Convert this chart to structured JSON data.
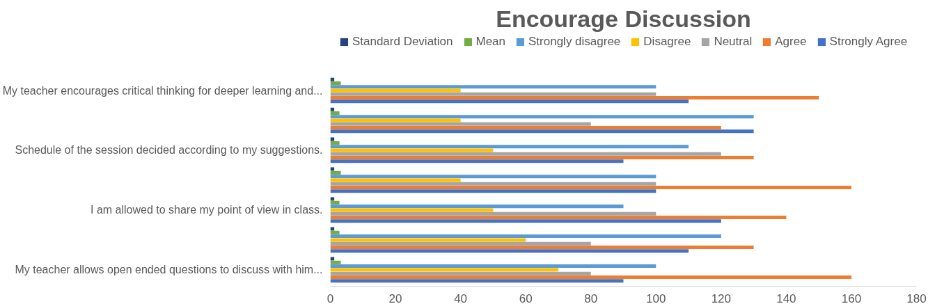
{
  "chart_data": {
    "type": "bar",
    "orientation": "horizontal",
    "title": "Encourage Discussion",
    "categories": [
      "My teacher encourages critical thinking for deeper learning and...",
      null,
      "Schedule of the session decided according to my suggestions.",
      null,
      "I am allowed to share my point of view in class.",
      null,
      "My teacher allows open ended questions to discuss with him..."
    ],
    "series": [
      {
        "name": "Standard Deviation",
        "color": "#264478",
        "values": [
          1.2,
          1.2,
          1.2,
          1.2,
          1.2,
          1.2,
          1.2
        ]
      },
      {
        "name": "Mean",
        "color": "#70ad47",
        "values": [
          3.2,
          2.8,
          2.8,
          3.2,
          2.8,
          2.8,
          3.2
        ]
      },
      {
        "name": "Strongly disagree",
        "color": "#5b9bd5",
        "values": [
          100,
          130,
          110,
          100,
          90,
          120,
          100
        ]
      },
      {
        "name": "Disagree",
        "color": "#ffc000",
        "values": [
          40,
          40,
          50,
          40,
          50,
          60,
          70
        ]
      },
      {
        "name": "Neutral",
        "color": "#a5a5a5",
        "values": [
          100,
          80,
          120,
          100,
          100,
          80,
          80
        ]
      },
      {
        "name": "Agree",
        "color": "#ed7d31",
        "values": [
          150,
          120,
          130,
          160,
          140,
          130,
          160
        ]
      },
      {
        "name": "Strongly Agree",
        "color": "#4472c4",
        "values": [
          110,
          130,
          90,
          100,
          120,
          110,
          90
        ]
      }
    ],
    "xlim": [
      0,
      180
    ],
    "xticks": [
      0,
      20,
      40,
      60,
      80,
      100,
      120,
      140,
      160,
      180
    ],
    "grid": false,
    "legend": "top"
  }
}
